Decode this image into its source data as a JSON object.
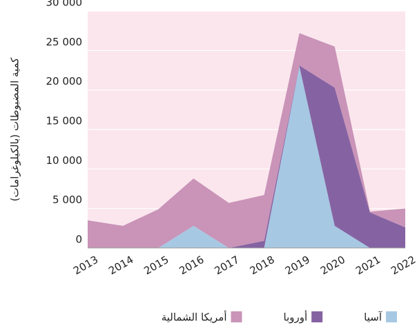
{
  "chart_data": {
    "type": "stacked_area",
    "y_label": "كمية المضبوطات (بالكيلوغرامات)",
    "categories": [
      "2013",
      "2014",
      "2015",
      "2016",
      "2017",
      "2018",
      "2019",
      "2020",
      "2021",
      "2022"
    ],
    "series": [
      {
        "name": "آسيا",
        "color": "#a7c8e3",
        "values": [
          0,
          0,
          0,
          2800,
          0,
          0,
          23000,
          2800,
          0,
          0
        ]
      },
      {
        "name": "أوروبا",
        "color": "#8563a3",
        "values": [
          0,
          0,
          0,
          0,
          0,
          900,
          100,
          17500,
          4500,
          2600
        ]
      },
      {
        "name": "أمريكا الشمالية",
        "color": "#c994b8",
        "values": [
          3500,
          2800,
          4900,
          6000,
          5700,
          5800,
          4100,
          5200,
          100,
          2400
        ]
      }
    ],
    "ylim": [
      0,
      30000
    ],
    "yticks": [
      0,
      {
        "value": 5000,
        "label": "5 000"
      },
      {
        "value": 10000,
        "label": "10 000"
      },
      {
        "value": 15000,
        "label": "15 000"
      },
      {
        "value": 20000,
        "label": "20 000"
      },
      {
        "value": 25000,
        "label": "25 000"
      },
      {
        "value": 30000,
        "label": "30 000"
      }
    ],
    "grid": true
  }
}
